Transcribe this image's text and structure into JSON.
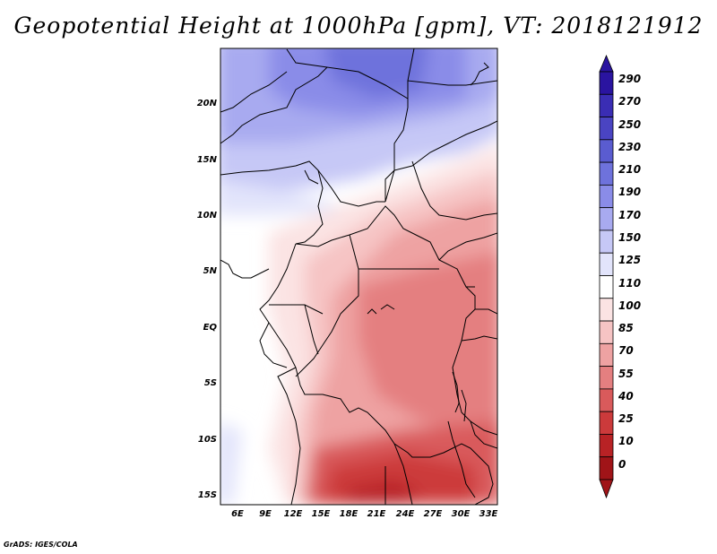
{
  "title": "Geopotential Height at 1000hPa [gpm], VT: 2018121912",
  "credit": "GrADS: IGES/COLA",
  "map": {
    "lat_labels": [
      "20N",
      "15N",
      "10N",
      "5N",
      "EQ",
      "5S",
      "10S",
      "15S"
    ],
    "lon_labels": [
      "6E",
      "9E",
      "12E",
      "15E",
      "18E",
      "21E",
      "24E",
      "27E",
      "30E",
      "33E"
    ]
  },
  "colorbar": {
    "labels": [
      "290",
      "270",
      "250",
      "230",
      "210",
      "190",
      "170",
      "150",
      "125",
      "110",
      "100",
      "85",
      "70",
      "55",
      "40",
      "25",
      "10",
      "0"
    ],
    "colors": [
      "#2a14a0",
      "#3a2db4",
      "#4a44c2",
      "#5a5cd0",
      "#6e72dc",
      "#8a8ce8",
      "#a8aaf0",
      "#c6c8f6",
      "#e2e4fb",
      "#ffffff",
      "#fbe3e3",
      "#f6c4c4",
      "#eea2a2",
      "#e47f80",
      "#d95a5b",
      "#cc3a3b",
      "#b82225",
      "#a01418"
    ]
  }
}
